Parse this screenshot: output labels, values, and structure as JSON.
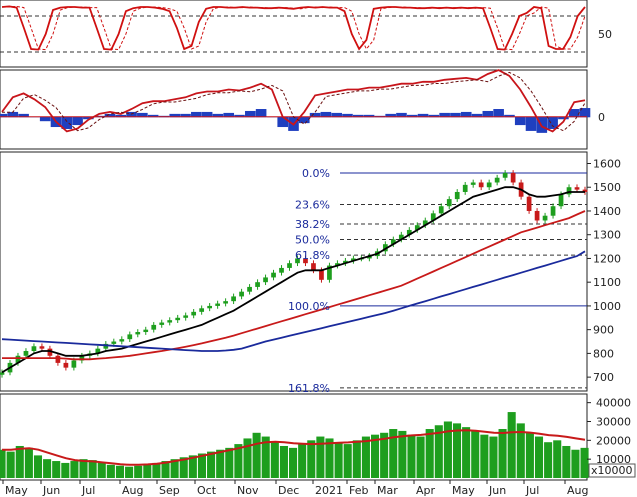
{
  "chart_data": [
    {
      "type": "line",
      "panel": "stochastic",
      "yticks": [
        50
      ],
      "ylim": [
        0,
        100
      ],
      "dashed_levels": [
        80,
        20
      ],
      "series": [
        {
          "color": "#d01010",
          "values": [
            95,
            96,
            94,
            60,
            25,
            24,
            50,
            90,
            94,
            95,
            95,
            94,
            94,
            60,
            25,
            24,
            50,
            88,
            93,
            95,
            95,
            94,
            92,
            88,
            60,
            25,
            30,
            70,
            92,
            95,
            95,
            94,
            94,
            95,
            94,
            94,
            93,
            93,
            94,
            93,
            92,
            94,
            95,
            94,
            95,
            94,
            94,
            88,
            50,
            25,
            40,
            92,
            94,
            95,
            95,
            94,
            94,
            93,
            93,
            94,
            93,
            94,
            93,
            94,
            93,
            94,
            93,
            60,
            25,
            24,
            50,
            80,
            85,
            95,
            93,
            30,
            25,
            25,
            45,
            80,
            95
          ]
        }
      ]
    },
    {
      "type": "line",
      "panel": "macd",
      "yticks": [
        0
      ],
      "ylim": [
        -30,
        45
      ],
      "series": [
        {
          "color": "#c8151b",
          "values": [
            5,
            20,
            24,
            18,
            10,
            -5,
            -15,
            -12,
            -3,
            3,
            5,
            3,
            8,
            14,
            16,
            16,
            18,
            20,
            24,
            26,
            26,
            28,
            27,
            30,
            34,
            28,
            0,
            -8,
            5,
            22,
            24,
            26,
            28,
            28,
            30,
            30,
            32,
            34,
            34,
            36,
            36,
            38,
            39,
            40,
            38,
            44,
            48,
            42,
            28,
            10,
            -10,
            -15,
            -5,
            15,
            17
          ]
        },
        {
          "color": "#1f3fbf",
          "values": [
            3,
            5,
            3,
            0,
            -4,
            -10,
            -12,
            -8,
            -2,
            1,
            3,
            2,
            5,
            4,
            2,
            1,
            3,
            3,
            5,
            5,
            3,
            4,
            2,
            6,
            8,
            0,
            -10,
            -14,
            -6,
            4,
            5,
            4,
            3,
            2,
            2,
            1,
            3,
            4,
            2,
            3,
            2,
            4,
            4,
            5,
            3,
            6,
            8,
            2,
            -8,
            -14,
            -16,
            -12,
            -2,
            8,
            9
          ]
        }
      ]
    },
    {
      "type": "line",
      "panel": "price",
      "x_labels": [
        "May",
        "Jun",
        "Jul",
        "Aug",
        "Sep",
        "Oct",
        "Nov",
        "Dec",
        "2021",
        "Feb",
        "Mar",
        "Apr",
        "May",
        "Jun",
        "Jul",
        "Aug"
      ],
      "yticks": [
        700,
        800,
        900,
        1000,
        1100,
        1200,
        1300,
        1400,
        1500,
        1600
      ],
      "ylim": [
        650,
        1640
      ],
      "fibonacci": [
        {
          "label": "0.0%",
          "value": 1560
        },
        {
          "label": "23.6%",
          "value": 1427
        },
        {
          "label": "38.2%",
          "value": 1345
        },
        {
          "label": "50.0%",
          "value": 1280
        },
        {
          "label": "61.8%",
          "value": 1214
        },
        {
          "label": "100.0%",
          "value": 1000
        },
        {
          "label": "161.8%",
          "value": 655
        }
      ],
      "close": [
        720,
        760,
        790,
        810,
        830,
        820,
        790,
        760,
        740,
        770,
        790,
        800,
        820,
        840,
        850,
        860,
        880,
        890,
        900,
        920,
        930,
        940,
        950,
        960,
        975,
        990,
        1000,
        1010,
        1020,
        1040,
        1060,
        1080,
        1100,
        1120,
        1140,
        1160,
        1180,
        1200,
        1180,
        1150,
        1110,
        1170,
        1180,
        1190,
        1200,
        1200,
        1210,
        1230,
        1260,
        1280,
        1300,
        1320,
        1340,
        1360,
        1390,
        1420,
        1450,
        1480,
        1510,
        1520,
        1500,
        1520,
        1540,
        1560,
        1520,
        1460,
        1400,
        1360,
        1380,
        1420,
        1470,
        1500,
        1490,
        1480
      ],
      "series": [
        {
          "color": "#000000",
          "values": [
            720,
            740,
            760,
            780,
            800,
            810,
            810,
            800,
            790,
            790,
            790,
            795,
            800,
            810,
            815,
            820,
            830,
            840,
            850,
            860,
            870,
            880,
            890,
            900,
            910,
            920,
            935,
            950,
            965,
            980,
            1000,
            1020,
            1040,
            1060,
            1080,
            1100,
            1120,
            1140,
            1150,
            1150,
            1150,
            1160,
            1170,
            1180,
            1190,
            1200,
            1210,
            1220,
            1240,
            1260,
            1280,
            1300,
            1320,
            1340,
            1360,
            1380,
            1400,
            1420,
            1440,
            1460,
            1470,
            1480,
            1490,
            1500,
            1500,
            1490,
            1470,
            1460,
            1460,
            1465,
            1470,
            1480,
            1480,
            1480
          ]
        },
        {
          "color": "#c81a1a",
          "values": [
            780,
            780,
            780,
            780,
            780,
            780,
            780,
            780,
            778,
            775,
            775,
            775,
            778,
            780,
            783,
            786,
            790,
            795,
            800,
            805,
            810,
            816,
            822,
            828,
            835,
            842,
            850,
            858,
            866,
            875,
            885,
            895,
            905,
            915,
            925,
            935,
            945,
            955,
            965,
            975,
            985,
            995,
            1005,
            1015,
            1025,
            1035,
            1045,
            1055,
            1065,
            1075,
            1085,
            1100,
            1115,
            1130,
            1145,
            1160,
            1175,
            1190,
            1205,
            1220,
            1235,
            1250,
            1265,
            1280,
            1295,
            1310,
            1320,
            1330,
            1340,
            1350,
            1360,
            1370,
            1385,
            1400
          ]
        },
        {
          "color": "#1a2a9c",
          "values": [
            860,
            858,
            856,
            854,
            852,
            850,
            848,
            846,
            844,
            842,
            840,
            838,
            836,
            834,
            832,
            830,
            828,
            826,
            824,
            822,
            820,
            818,
            816,
            814,
            812,
            810,
            810,
            810,
            812,
            815,
            820,
            830,
            840,
            850,
            858,
            866,
            874,
            882,
            890,
            898,
            906,
            914,
            922,
            930,
            938,
            946,
            954,
            962,
            970,
            980,
            990,
            1000,
            1010,
            1020,
            1030,
            1040,
            1050,
            1060,
            1070,
            1080,
            1090,
            1100,
            1110,
            1120,
            1130,
            1140,
            1150,
            1160,
            1170,
            1180,
            1190,
            1200,
            1210,
            1230
          ]
        }
      ]
    },
    {
      "type": "bar",
      "panel": "volume",
      "unit_label": "x10000",
      "yticks": [
        10000,
        20000,
        30000,
        40000
      ],
      "ylim": [
        0,
        43000
      ],
      "values": [
        15000,
        14000,
        17000,
        16000,
        12000,
        10000,
        9000,
        8000,
        9000,
        10000,
        9500,
        8000,
        7000,
        6500,
        6000,
        6500,
        7000,
        8000,
        9000,
        10000,
        11000,
        12000,
        13000,
        14000,
        15000,
        16000,
        18000,
        21000,
        24000,
        22000,
        19000,
        17000,
        16000,
        18000,
        20000,
        22000,
        21000,
        19000,
        18000,
        20000,
        22000,
        23000,
        24000,
        26000,
        25000,
        23000,
        22000,
        26000,
        28000,
        30000,
        29000,
        27000,
        25000,
        23000,
        22000,
        26000,
        35000,
        29000,
        24000,
        22000,
        19000,
        20000,
        17000,
        15000,
        16000
      ],
      "series": [
        {
          "color": "#c81a1a",
          "values": [
            15000,
            15000,
            15500,
            15800,
            15000,
            13500,
            12000,
            10500,
            9500,
            9000,
            8800,
            8300,
            7800,
            7300,
            7000,
            7000,
            7200,
            7600,
            8200,
            9000,
            9800,
            10800,
            11800,
            12800,
            13800,
            14800,
            15800,
            17000,
            18200,
            19000,
            19200,
            19000,
            18500,
            18200,
            18000,
            18200,
            18500,
            18700,
            18900,
            19200,
            19600,
            20200,
            20800,
            21600,
            22200,
            22600,
            22900,
            23400,
            24000,
            24800,
            25200,
            25300,
            25100,
            24600,
            24000,
            23900,
            24300,
            24400,
            24100,
            23500,
            22800,
            22400,
            21800,
            21000,
            20300
          ]
        }
      ]
    }
  ]
}
